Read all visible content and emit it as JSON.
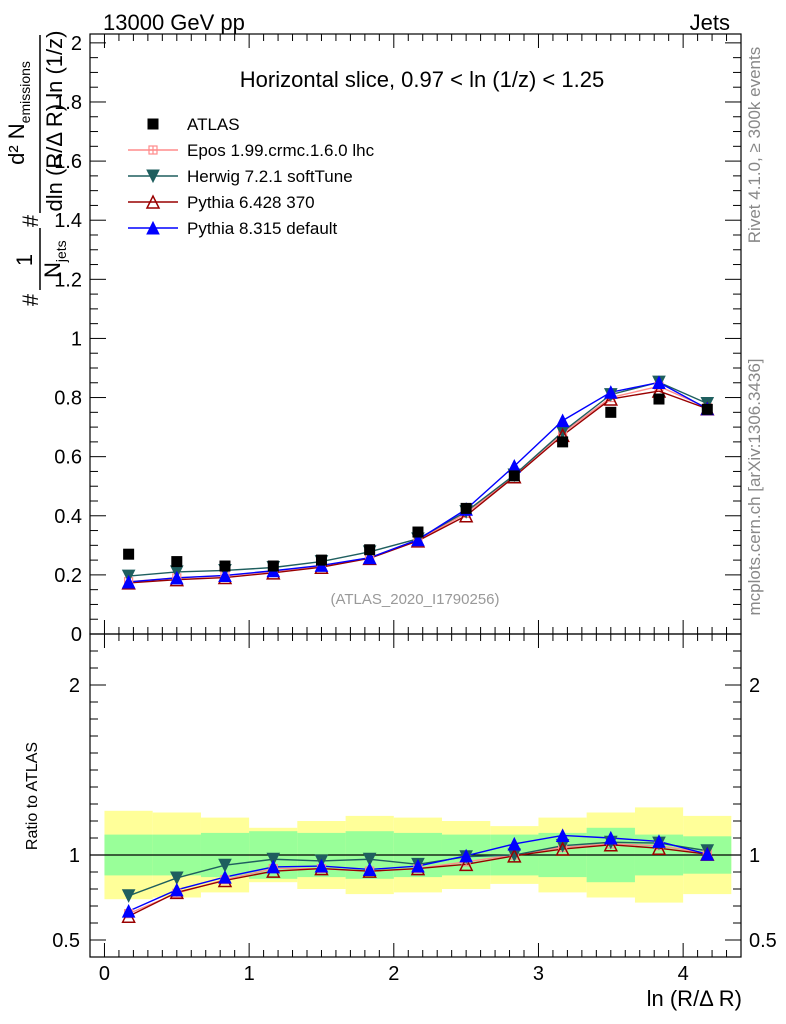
{
  "header": {
    "left": "13000 GeV pp",
    "right": "Jets"
  },
  "side_text": {
    "rivet": "Rivet 4.1.0, ≥ 300k events",
    "mcplots": "mcplots.cern.ch [arXiv:1306.3436]"
  },
  "chart_data": {
    "type": "line",
    "title": "Horizontal slice, 0.97 < ln (1/z) < 1.25",
    "watermark": "(ATLAS_2020_I1790256)",
    "xlabel": "ln (R/Δ R)",
    "ylabel_main": "1/N_jets · d²N_emissions / dln(R/ΔR) ln(1/z)",
    "ylabel_main_parts": {
      "num_top": "d² N",
      "num_sub": "emissions",
      "den": "dln (R/Δ R) ln (1/z)",
      "one": "1",
      "njets": "N",
      "njets_sub": "jets",
      "hash": "#"
    },
    "ylabel_ratio": "Ratio to ATLAS",
    "xlim": [
      -0.1,
      4.4
    ],
    "ylim_main": [
      0,
      2.03
    ],
    "ylim_ratio": [
      0.4,
      2.3
    ],
    "x_ticks": [
      0,
      1,
      2,
      3,
      4
    ],
    "x_tick_labels": [
      "0",
      "1",
      "2",
      "3",
      "4"
    ],
    "y_ticks_main": [
      0,
      0.2,
      0.4,
      0.6,
      0.8,
      1,
      1.2,
      1.4,
      1.6,
      1.8,
      2
    ],
    "y_tick_labels_main": [
      "0",
      "0.2",
      "0.4",
      "0.6",
      "0.8",
      "1",
      "1.2",
      "1.4",
      "1.6",
      "1.8",
      "2"
    ],
    "y_ticks_ratio": [
      0.5,
      1,
      2
    ],
    "y_tick_labels_ratio": [
      "0.5",
      "1",
      "2"
    ],
    "bin_edges": [
      0,
      0.333,
      0.667,
      1.0,
      1.333,
      1.667,
      2.0,
      2.333,
      2.667,
      3.0,
      3.333,
      3.667,
      4.0,
      4.333
    ],
    "x": [
      0.167,
      0.5,
      0.833,
      1.167,
      1.5,
      1.833,
      2.167,
      2.5,
      2.833,
      3.167,
      3.5,
      3.833,
      4.167
    ],
    "data": {
      "name": "ATLAS",
      "values": [
        0.27,
        0.245,
        0.23,
        0.23,
        0.25,
        0.285,
        0.345,
        0.425,
        0.535,
        0.65,
        0.75,
        0.795,
        0.76
      ],
      "stat_band": [
        0.12,
        0.12,
        0.13,
        0.14,
        0.13,
        0.14,
        0.13,
        0.12,
        0.12,
        0.13,
        0.16,
        0.12,
        0.11
      ],
      "total_band": [
        0.26,
        0.25,
        0.22,
        0.16,
        0.2,
        0.23,
        0.22,
        0.2,
        0.17,
        0.22,
        0.25,
        0.28,
        0.23
      ],
      "color": "#000000"
    },
    "series": [
      {
        "name": "Epos 1.99.crmc.1.6.0 lhc",
        "values": [
          0.177,
          0.19,
          0.197,
          0.212,
          0.23,
          0.258,
          0.318,
          0.408,
          0.535,
          0.68,
          0.8,
          0.838,
          0.766
        ],
        "ratio": [
          0.655,
          0.775,
          0.855,
          0.92,
          0.92,
          0.905,
          0.92,
          0.96,
          1.0,
          1.045,
          1.065,
          1.055,
          1.01
        ],
        "color": "#ff8c8c",
        "marker": "cross"
      },
      {
        "name": "Herwig 7.2.1 softTune",
        "values": [
          0.196,
          0.21,
          0.215,
          0.225,
          0.245,
          0.278,
          0.322,
          0.414,
          0.538,
          0.684,
          0.81,
          0.852,
          0.78
        ],
        "ratio": [
          0.76,
          0.865,
          0.94,
          0.975,
          0.965,
          0.975,
          0.945,
          0.99,
          1.0,
          1.055,
          1.075,
          1.07,
          1.025
        ],
        "color": "#1f5f5f",
        "marker": "triangle-down"
      },
      {
        "name": "Pythia 6.428 370",
        "values": [
          0.173,
          0.184,
          0.191,
          0.207,
          0.226,
          0.256,
          0.315,
          0.4,
          0.532,
          0.672,
          0.795,
          0.822,
          0.762
        ],
        "ratio": [
          0.64,
          0.78,
          0.85,
          0.905,
          0.92,
          0.905,
          0.92,
          0.945,
          0.995,
          1.035,
          1.06,
          1.04,
          1.005
        ],
        "color": "#990000",
        "marker": "triangle-up-open"
      },
      {
        "name": "Pythia 8.315 default",
        "values": [
          0.176,
          0.19,
          0.198,
          0.214,
          0.232,
          0.258,
          0.319,
          0.422,
          0.568,
          0.722,
          0.818,
          0.851,
          0.762
        ],
        "ratio": [
          0.67,
          0.795,
          0.87,
          0.93,
          0.935,
          0.915,
          0.935,
          0.995,
          1.065,
          1.115,
          1.1,
          1.08,
          1.005
        ],
        "color": "#0000ff",
        "marker": "triangle-up"
      }
    ],
    "legend_position": "top-left"
  }
}
